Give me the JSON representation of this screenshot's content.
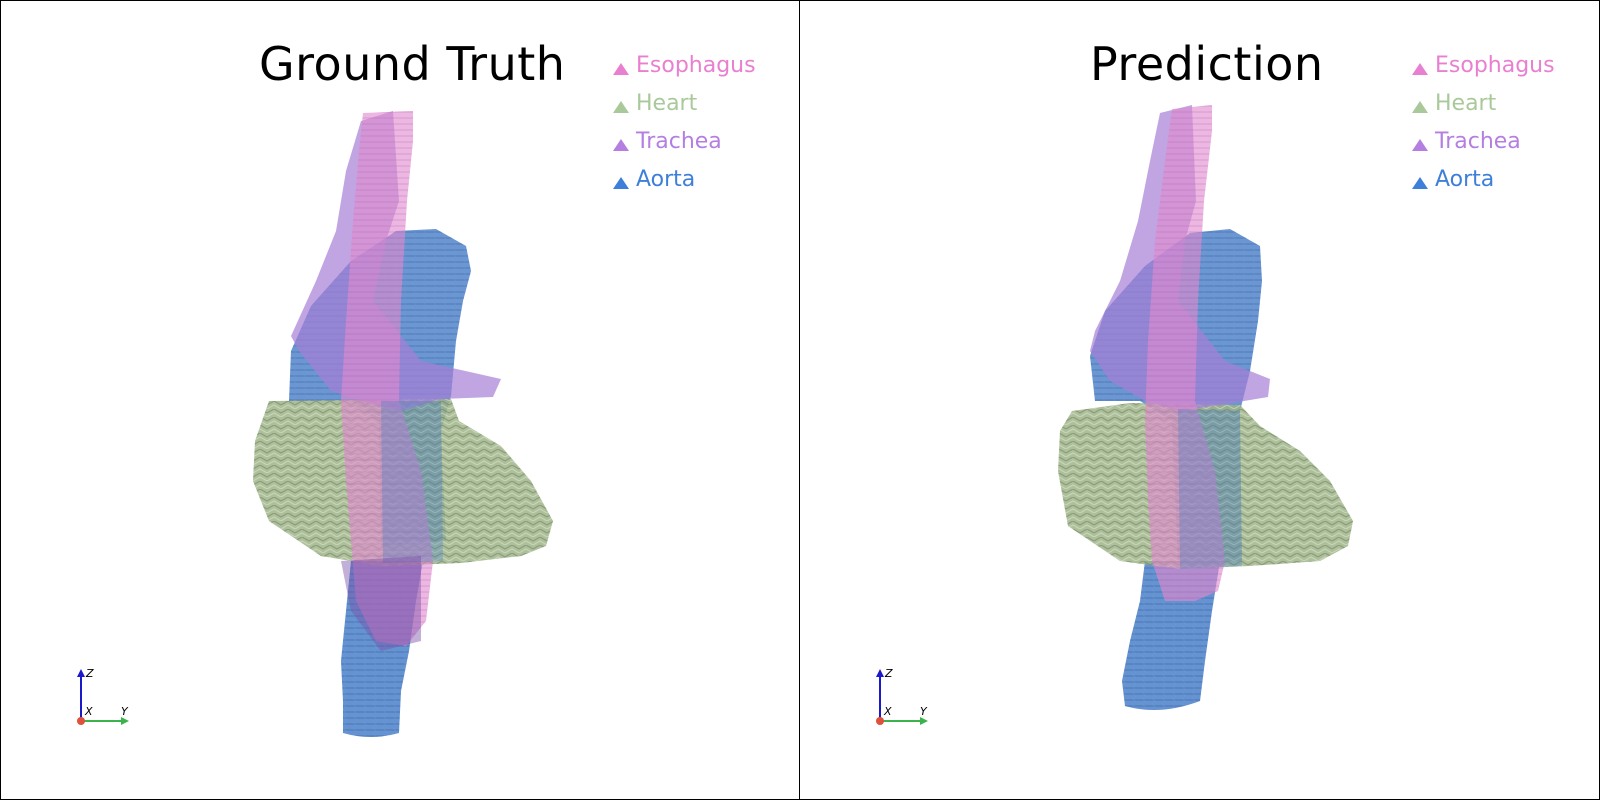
{
  "panels": [
    {
      "title": "Ground Truth",
      "legend": [
        {
          "label": "Esophagus",
          "color": "#e97fd0"
        },
        {
          "label": "Heart",
          "color": "#a9c99a"
        },
        {
          "label": "Trachea",
          "color": "#b47fe0"
        },
        {
          "label": "Aorta",
          "color": "#3d7fd9"
        }
      ],
      "axes": {
        "x": "X",
        "y": "Y",
        "z": "Z"
      }
    },
    {
      "title": "Prediction",
      "legend": [
        {
          "label": "Esophagus",
          "color": "#e97fd0"
        },
        {
          "label": "Heart",
          "color": "#a9c99a"
        },
        {
          "label": "Trachea",
          "color": "#b47fe0"
        },
        {
          "label": "Aorta",
          "color": "#3d7fd9"
        }
      ],
      "axes": {
        "x": "X",
        "y": "Y",
        "z": "Z"
      }
    }
  ],
  "colors": {
    "esophagus": "#e08ad0",
    "heart": "#9fb58a",
    "trachea": "#a57fd6",
    "aorta": "#4a7fc8"
  }
}
